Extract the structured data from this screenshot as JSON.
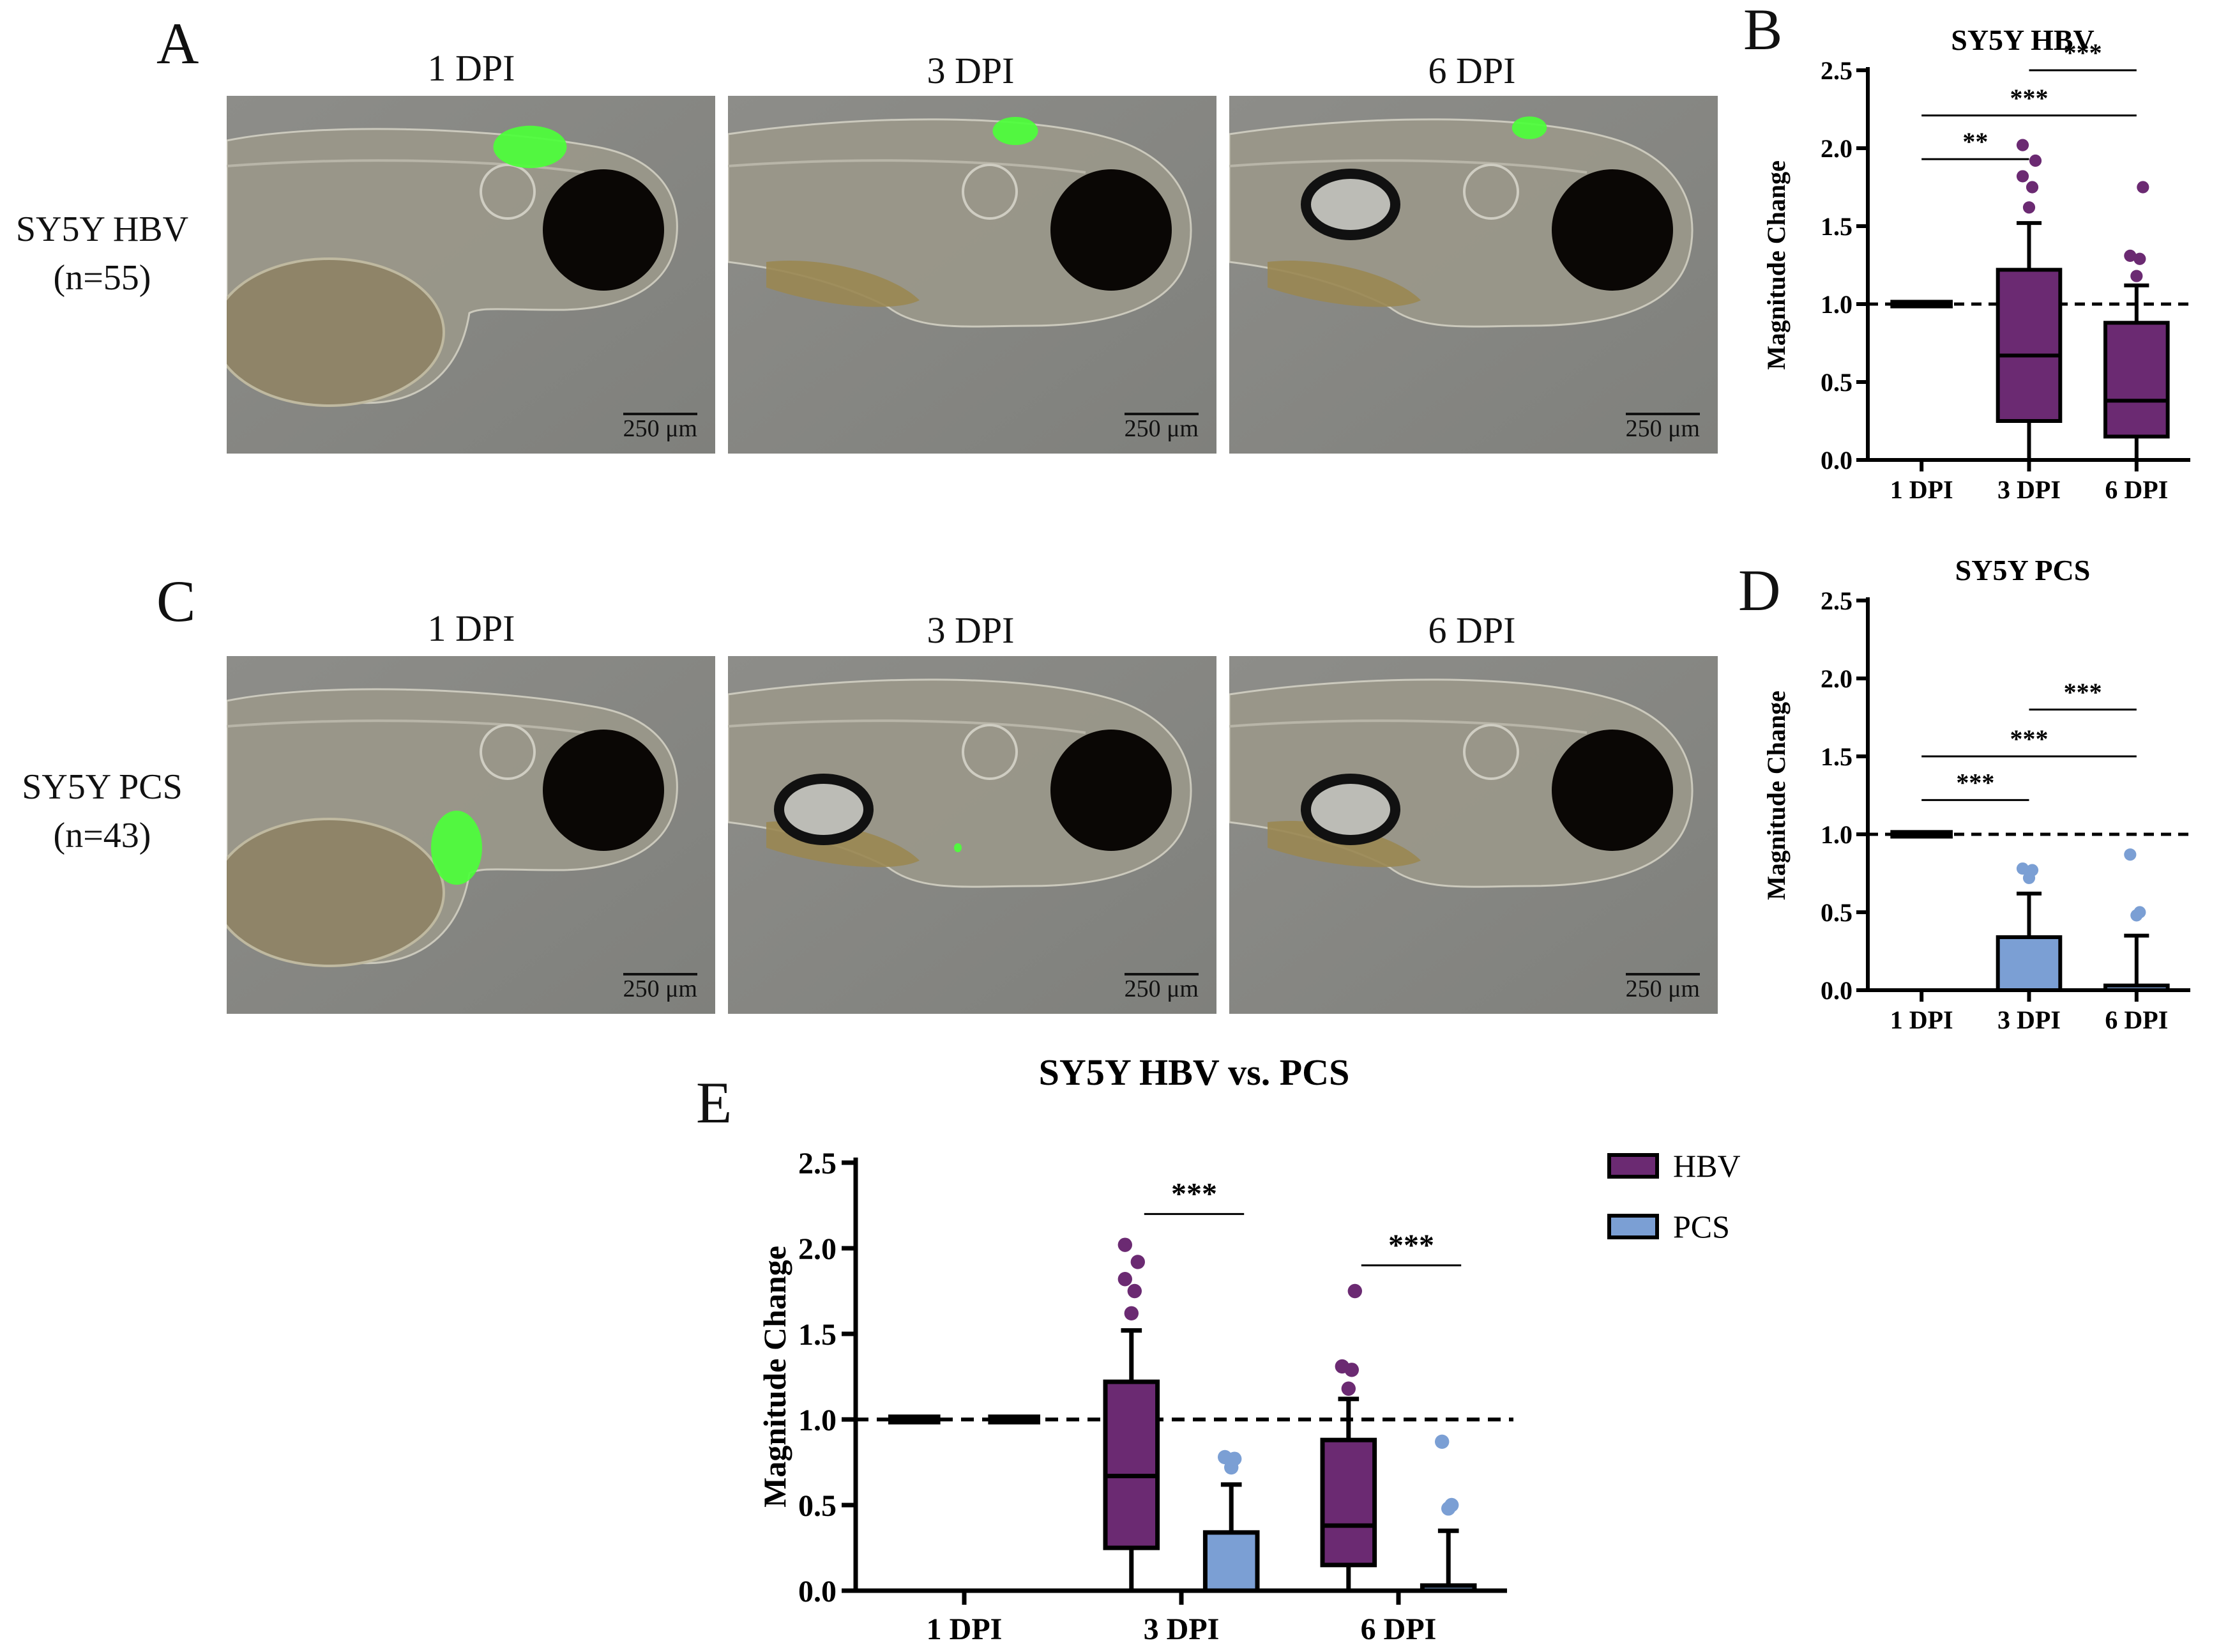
{
  "panels": {
    "a": {
      "letter": "A"
    },
    "b": {
      "letter": "B"
    },
    "c": {
      "letter": "C"
    },
    "d": {
      "letter": "D"
    },
    "e": {
      "letter": "E"
    }
  },
  "microscopy": {
    "columns": [
      "1 DPI",
      "3 DPI",
      "6 DPI"
    ],
    "rows": [
      {
        "label_line1": "SY5Y HBV",
        "label_line2": "(n=55)",
        "fluor": [
          0.9,
          0.5,
          0.35
        ]
      },
      {
        "label_line1": "SY5Y PCS",
        "label_line2": "(n=43)",
        "fluor": [
          0.9,
          0.05,
          0.0
        ]
      }
    ],
    "scale_bar": "250 μm",
    "colors": {
      "background": "#868682",
      "fluorescence": "#4cff3a",
      "eye": "#0a0705"
    }
  },
  "chart_data": [
    {
      "id": "B",
      "type": "box",
      "title": "SY5Y HBV",
      "ylabel": "Magnitude Change",
      "categories": [
        "1 DPI",
        "3 DPI",
        "6 DPI"
      ],
      "ylim": [
        0,
        2.5
      ],
      "yticks": [
        "0.0",
        "0.5",
        "1.0",
        "1.5",
        "2.0",
        "2.5"
      ],
      "reference_line": 1.0,
      "color": "#6b2a72",
      "boxes": [
        {
          "min": 1.0,
          "q1": 1.0,
          "median": 1.0,
          "q3": 1.0,
          "max": 1.0,
          "outliers": []
        },
        {
          "min": 0.0,
          "q1": 0.25,
          "median": 0.67,
          "q3": 1.22,
          "max": 1.52,
          "outliers": [
            1.62,
            1.75,
            1.82,
            1.92,
            2.02
          ]
        },
        {
          "min": 0.0,
          "q1": 0.15,
          "median": 0.38,
          "q3": 0.88,
          "max": 1.12,
          "outliers": [
            1.18,
            1.29,
            1.31,
            1.75
          ]
        }
      ],
      "significance": [
        {
          "from": 0,
          "to": 1,
          "label": "**",
          "y": 1.93
        },
        {
          "from": 0,
          "to": 2,
          "label": "***",
          "y": 2.21
        },
        {
          "from": 1,
          "to": 2,
          "label": "***",
          "y": 2.5
        }
      ]
    },
    {
      "id": "D",
      "type": "box",
      "title": "SY5Y PCS",
      "ylabel": "Magnitude Change",
      "categories": [
        "1 DPI",
        "3 DPI",
        "6 DPI"
      ],
      "ylim": [
        0,
        2.5
      ],
      "yticks": [
        "0.0",
        "0.5",
        "1.0",
        "1.5",
        "2.0",
        "2.5"
      ],
      "reference_line": 1.0,
      "color": "#7b9fd4",
      "boxes": [
        {
          "min": 1.0,
          "q1": 1.0,
          "median": 1.0,
          "q3": 1.0,
          "max": 1.0,
          "outliers": []
        },
        {
          "min": 0.0,
          "q1": 0.0,
          "median": 0.0,
          "q3": 0.34,
          "max": 0.62,
          "outliers": [
            0.72,
            0.77,
            0.78
          ]
        },
        {
          "min": 0.0,
          "q1": 0.0,
          "median": 0.0,
          "q3": 0.03,
          "max": 0.35,
          "outliers": [
            0.48,
            0.5,
            0.87
          ]
        }
      ],
      "significance": [
        {
          "from": 0,
          "to": 1,
          "label": "***",
          "y": 1.22
        },
        {
          "from": 0,
          "to": 2,
          "label": "***",
          "y": 1.5
        },
        {
          "from": 1,
          "to": 2,
          "label": "***",
          "y": 1.8
        }
      ]
    },
    {
      "id": "E",
      "type": "box",
      "title": "SY5Y HBV vs. PCS",
      "ylabel": "Magnitude  Change",
      "categories": [
        "1 DPI",
        "3 DPI",
        "6 DPI"
      ],
      "ylim": [
        0,
        2.5
      ],
      "yticks": [
        "0.0",
        "0.5",
        "1.0",
        "1.5",
        "2.0",
        "2.5"
      ],
      "reference_line": 1.0,
      "legend": {
        "position": "right",
        "entries": [
          {
            "name": "HBV",
            "color": "#6b2a72"
          },
          {
            "name": "PCS",
            "color": "#7b9fd4"
          }
        ]
      },
      "series": [
        {
          "name": "HBV",
          "color": "#6b2a72",
          "boxes": [
            {
              "min": 1.0,
              "q1": 1.0,
              "median": 1.0,
              "q3": 1.0,
              "max": 1.0,
              "outliers": []
            },
            {
              "min": 0.0,
              "q1": 0.25,
              "median": 0.67,
              "q3": 1.22,
              "max": 1.52,
              "outliers": [
                1.62,
                1.75,
                1.82,
                1.92,
                2.02
              ]
            },
            {
              "min": 0.0,
              "q1": 0.15,
              "median": 0.38,
              "q3": 0.88,
              "max": 1.12,
              "outliers": [
                1.18,
                1.29,
                1.31,
                1.75
              ]
            }
          ]
        },
        {
          "name": "PCS",
          "color": "#7b9fd4",
          "boxes": [
            {
              "min": 1.0,
              "q1": 1.0,
              "median": 1.0,
              "q3": 1.0,
              "max": 1.0,
              "outliers": []
            },
            {
              "min": 0.0,
              "q1": 0.0,
              "median": 0.0,
              "q3": 0.34,
              "max": 0.62,
              "outliers": [
                0.72,
                0.77,
                0.78
              ]
            },
            {
              "min": 0.0,
              "q1": 0.0,
              "median": 0.0,
              "q3": 0.03,
              "max": 0.35,
              "outliers": [
                0.48,
                0.5,
                0.87
              ]
            }
          ]
        }
      ],
      "significance": [
        {
          "category": 1,
          "label": "***",
          "y": 2.2
        },
        {
          "category": 2,
          "label": "***",
          "y": 1.9
        }
      ]
    }
  ]
}
